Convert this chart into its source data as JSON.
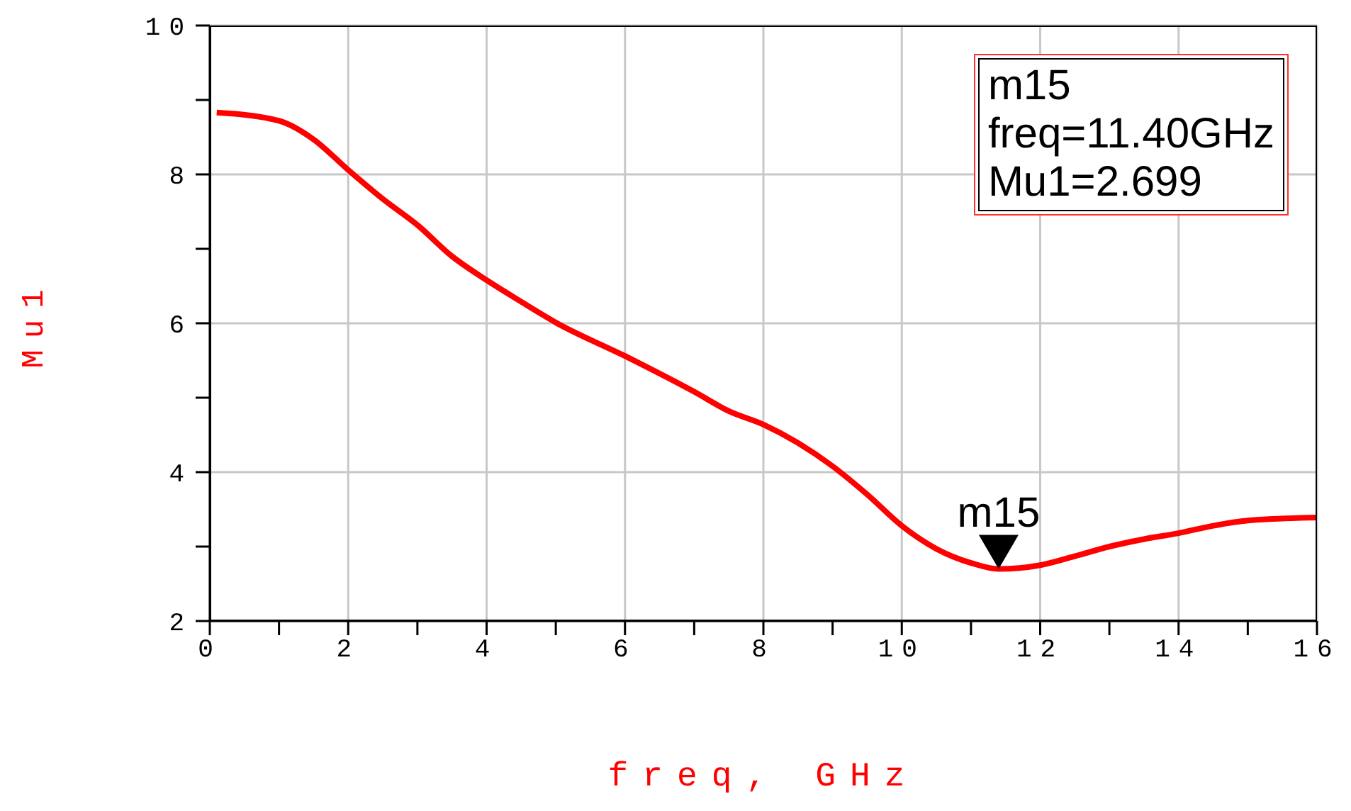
{
  "chart_data": {
    "type": "line",
    "xlabel": "freq, GHz",
    "ylabel": "Mu1",
    "series": [
      {
        "color": "#ff0000",
        "x": [
          0.1,
          1,
          1.5,
          2,
          2.5,
          3,
          3.5,
          4,
          4.5,
          5,
          6,
          7,
          7.5,
          8,
          9,
          9.5,
          10,
          10.5,
          11,
          11.4,
          12,
          12.5,
          13,
          13.5,
          14,
          14.5,
          15,
          16
        ],
        "values": [
          8.83,
          8.72,
          8.47,
          8.06,
          7.67,
          7.32,
          6.9,
          6.58,
          6.29,
          6.01,
          5.56,
          5.08,
          4.82,
          4.64,
          4.08,
          3.7,
          3.28,
          2.97,
          2.78,
          2.699,
          2.75,
          2.87,
          3.0,
          3.1,
          3.18,
          3.28,
          3.35,
          3.39
        ]
      }
    ],
    "xlim": [
      0,
      16
    ],
    "ylim": [
      2,
      10
    ],
    "xticks": [
      0,
      {
        "value": 1,
        "label": null
      },
      2,
      {
        "value": 3,
        "label": null
      },
      4,
      {
        "value": 5,
        "label": null
      },
      6,
      {
        "value": 7,
        "label": null
      },
      8,
      {
        "value": 9,
        "label": null
      },
      10,
      {
        "value": 11,
        "label": null
      },
      12,
      {
        "value": 13,
        "label": null
      },
      14,
      {
        "value": 15,
        "label": null
      },
      16
    ],
    "yticks": [
      2,
      {
        "value": 3,
        "label": null
      },
      4,
      {
        "value": 5,
        "label": null
      },
      6,
      {
        "value": 7,
        "label": null
      },
      8,
      {
        "value": 9,
        "label": null
      },
      10
    ],
    "grid": true,
    "marker": "none",
    "line_style": "solid",
    "annotations": [
      {
        "text": "m15",
        "x": 11.4,
        "y": 2.699
      },
      "m15\nfreq=11.40GHz\nMu1=2.699"
    ]
  }
}
